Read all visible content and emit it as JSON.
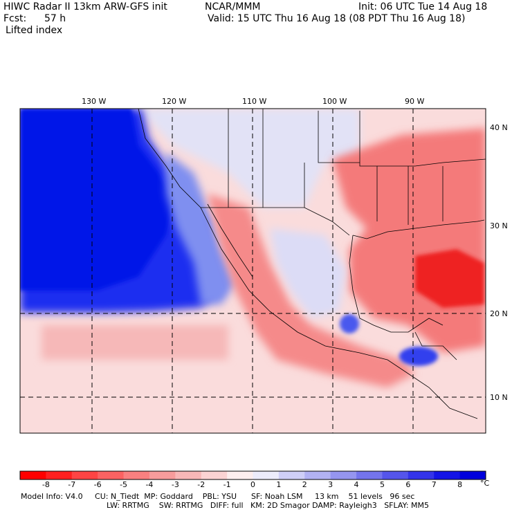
{
  "header": {
    "title_left": "HIWC Radar II 13km ARW-GFS init",
    "org": "NCAR/MMM",
    "init": "Init: 06 UTC Tue 14 Aug 18",
    "fcst_label": "Fcst:",
    "fcst_value": "57 h",
    "valid": "Valid: 15 UTC Thu 16 Aug 18 (08 PDT Thu 16 Aug 18)",
    "field": "Lifted index"
  },
  "map": {
    "lon_labels": [
      "130 W",
      "120 W",
      "110 W",
      "100 W",
      "90 W"
    ],
    "lat_labels": [
      "40 N",
      "30 N",
      "20 N",
      "10 N"
    ],
    "colors": {
      "strong_blue": "#0022ee",
      "deep_red": "#ee2020"
    }
  },
  "colorbar": {
    "ticks": [
      "-8",
      "-7",
      "-6",
      "-5",
      "-4",
      "-3",
      "-2",
      "-1",
      "0",
      "1",
      "2",
      "3",
      "4",
      "5",
      "6",
      "7",
      "8"
    ],
    "unit": "°C",
    "colors": [
      "#ff0000",
      "#ff2020",
      "#fe4444",
      "#fb6262",
      "#f98080",
      "#f79c9c",
      "#f8b7b7",
      "#fbd3d3",
      "#fdeeee",
      "#ececfb",
      "#cfcff7",
      "#b2b2f3",
      "#9595ef",
      "#7474ec",
      "#5555ea",
      "#3434e9",
      "#1414e6",
      "#0000dd"
    ]
  },
  "footer": {
    "line1": "Model Info: V4.0     CU: N_Tiedt  MP: Goddard    PBL: YSU      SF: Noah LSM     13 km    51 levels   96 sec",
    "line2": "LW: RRTMG    SW: RRTMG   DIFF: full   KM: 2D Smagor DAMP: Rayleigh3   SFLAY: MM5"
  }
}
